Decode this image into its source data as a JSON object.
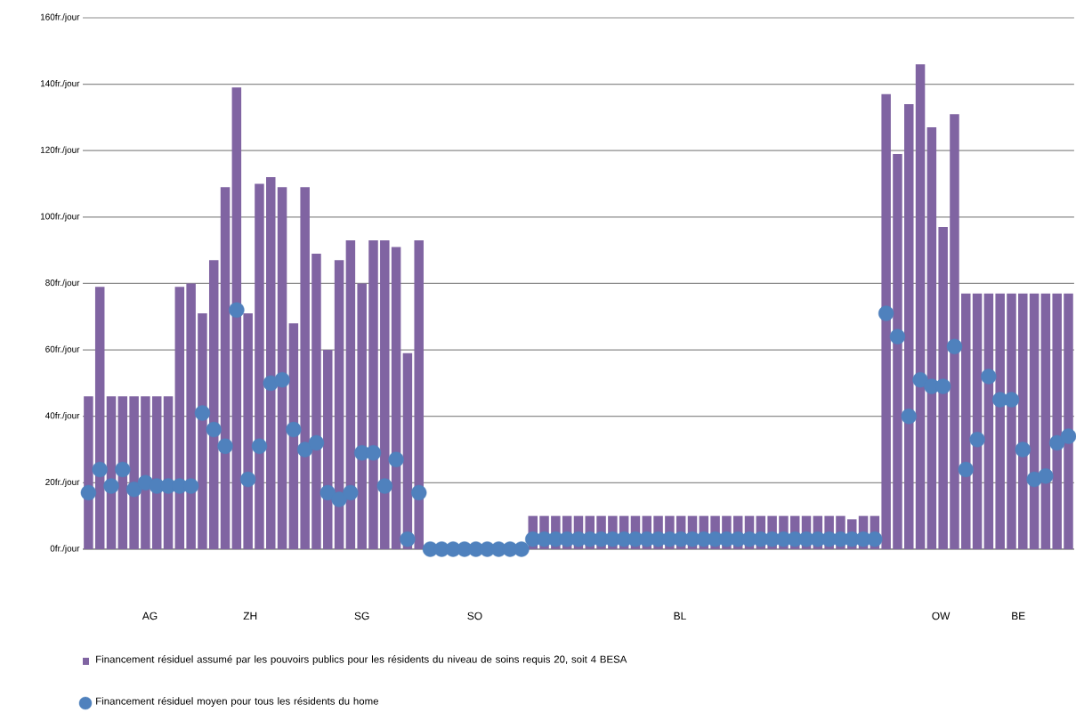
{
  "chart_data": {
    "type": "bar",
    "categories": [
      null,
      null,
      null,
      null,
      null,
      null,
      null,
      null,
      null,
      null,
      null,
      null,
      null,
      null,
      null,
      null,
      null,
      null,
      null,
      null,
      null,
      null,
      null,
      null,
      null,
      null,
      null,
      null,
      null,
      null,
      null,
      null,
      null,
      null,
      null,
      null,
      null,
      null,
      null,
      null,
      null,
      null,
      null,
      null,
      null,
      null,
      null,
      null,
      null,
      null,
      null,
      null,
      null,
      null,
      null,
      null,
      null,
      null,
      null,
      null,
      null,
      null,
      null,
      null,
      null,
      null,
      null,
      null,
      null,
      null,
      null,
      null,
      null,
      null,
      null,
      null,
      null,
      null,
      null,
      null,
      null,
      null,
      null,
      null,
      null,
      null,
      null
    ],
    "series": [
      {
        "name": "Financement résiduel assumé par les pouvoirs publics pour les résidents du niveau de soins requis 20, soit 4 BESA",
        "color": "#8064a2",
        "values": [
          46,
          79,
          46,
          46,
          46,
          46,
          46,
          46,
          79,
          80,
          71,
          87,
          109,
          139,
          71,
          110,
          112,
          109,
          68,
          109,
          89,
          60,
          87,
          93,
          80,
          93,
          93,
          91,
          59,
          93,
          0,
          0,
          0,
          0,
          0,
          0,
          0,
          0,
          0,
          10,
          10,
          10,
          10,
          10,
          10,
          10,
          10,
          10,
          10,
          10,
          10,
          10,
          10,
          10,
          10,
          10,
          10,
          10,
          10,
          10,
          10,
          10,
          10,
          10,
          10,
          10,
          10,
          9,
          10,
          10,
          137,
          119,
          134,
          146,
          127,
          97,
          131,
          77,
          77,
          77,
          77,
          77,
          77,
          77,
          77,
          77,
          77
        ]
      },
      {
        "name": "Financement résiduel moyen pour tous les résidents du home",
        "type": "scatter",
        "color": "#4f81bd",
        "marker": "circle",
        "values": [
          17,
          24,
          19,
          24,
          18,
          20,
          19,
          19,
          19,
          19,
          41,
          36,
          31,
          72,
          21,
          31,
          50,
          51,
          36,
          30,
          32,
          17,
          15,
          17,
          29,
          29,
          19,
          27,
          3,
          17,
          0,
          0,
          0,
          0,
          0,
          0,
          0,
          0,
          0,
          3,
          3,
          3,
          3,
          3,
          3,
          3,
          3,
          3,
          3,
          3,
          3,
          3,
          3,
          3,
          3,
          3,
          3,
          3,
          3,
          3,
          3,
          3,
          3,
          3,
          3,
          3,
          3,
          3,
          3,
          3,
          71,
          64,
          40,
          51,
          49,
          49,
          61,
          24,
          33,
          52,
          45,
          45,
          30,
          21,
          22,
          32,
          34
        ]
      }
    ],
    "ylim": [
      0,
      160
    ],
    "yticks": [
      {
        "value": 0,
        "label": "0fr./jour"
      },
      {
        "value": 20,
        "label": "20fr./jour"
      },
      {
        "value": 40,
        "label": "40fr./jour"
      },
      {
        "value": 60,
        "label": "60fr./jour"
      },
      {
        "value": 80,
        "label": "80fr./jour"
      },
      {
        "value": 100,
        "label": "100fr./jour"
      },
      {
        "value": 120,
        "label": "120fr./jour"
      },
      {
        "value": 140,
        "label": "140fr./jour"
      },
      {
        "value": 160,
        "label": "160fr./jour"
      }
    ],
    "grid": "y",
    "legend": "bottom left",
    "annotations": [
      "AG",
      "ZH",
      "SG",
      "SO",
      "BL",
      "OW",
      "BE"
    ]
  }
}
